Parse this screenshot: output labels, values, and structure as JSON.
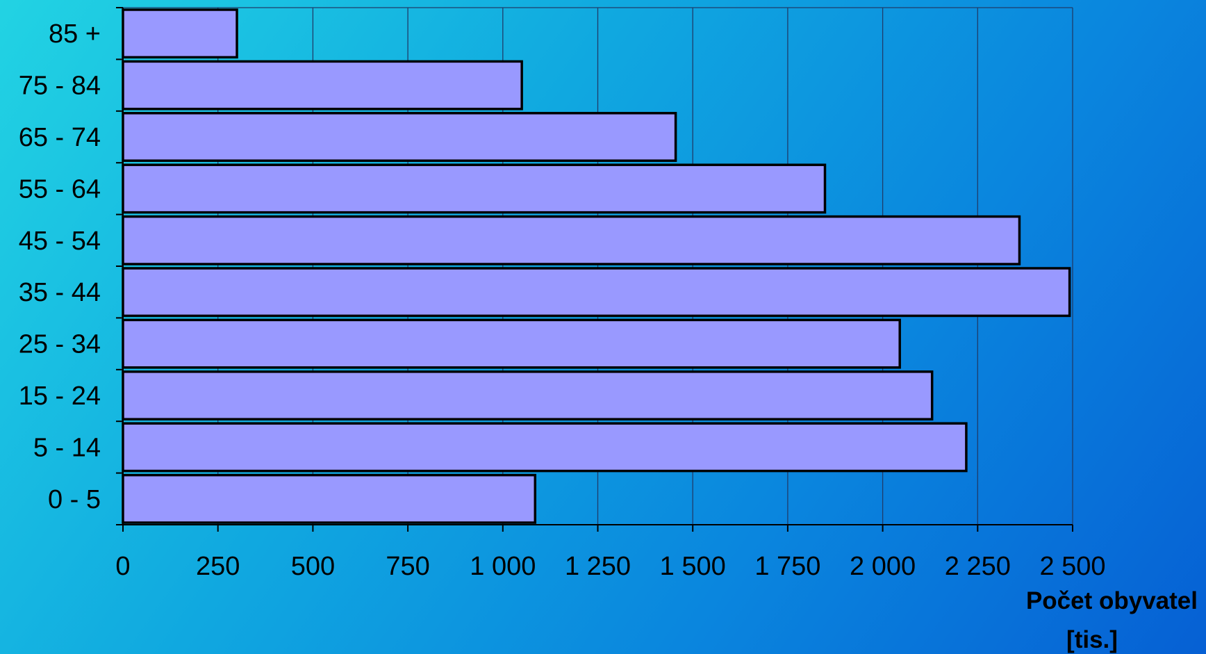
{
  "chart_data": {
    "type": "bar",
    "orientation": "horizontal",
    "categories": [
      "85 +",
      "75 - 84",
      "65 - 74",
      "55 - 64",
      "45 - 54",
      "35 - 44",
      "25 - 34",
      "15 - 24",
      "5 - 14",
      "0 - 5"
    ],
    "values": [
      300,
      1050,
      1455,
      1848,
      2360,
      2492,
      2045,
      2130,
      2220,
      1085
    ],
    "xlim": [
      0,
      2500
    ],
    "xticks": [
      0,
      250,
      500,
      750,
      1000,
      1250,
      1500,
      1750,
      2000,
      2250,
      2500
    ],
    "xtick_labels": [
      "0",
      "250",
      "500",
      "750",
      "1 000",
      "1 250",
      "1 500",
      "1 750",
      "2 000",
      "2 250",
      "2 500"
    ],
    "xlabel_line1": "Počet obyvatel",
    "xlabel_line2": "[tis.]",
    "ylabel": "",
    "grid": "vertical",
    "legend": "none",
    "colors": {
      "bar_fill": "#9999ff",
      "bar_stroke": "#000000",
      "gridline": "#1f3c6a",
      "axis": "#000000"
    }
  }
}
